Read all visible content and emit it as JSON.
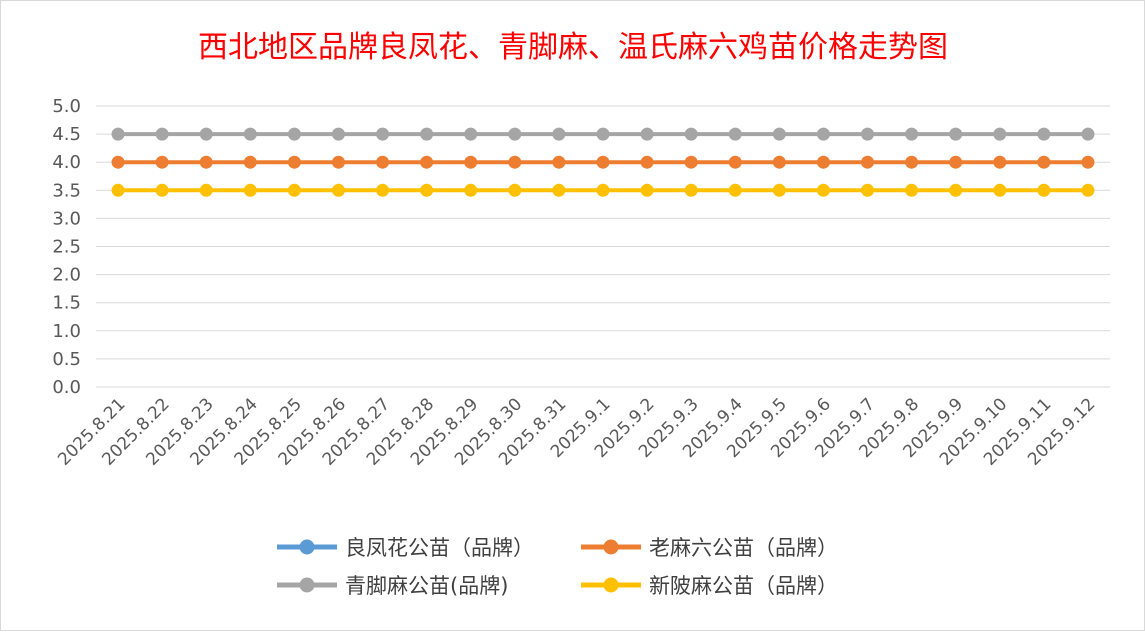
{
  "chart_data": {
    "type": "line",
    "title": "西北地区品牌良凤花、青脚麻、温氏麻六鸡苗价格走势图",
    "xlabel": "",
    "ylabel": "",
    "ylim": [
      0,
      5
    ],
    "yticks": [
      "0.0",
      "0.5",
      "1.0",
      "1.5",
      "2.0",
      "2.5",
      "3.0",
      "3.5",
      "4.0",
      "4.5",
      "5.0"
    ],
    "grid": true,
    "legend_position": "bottom",
    "categories": [
      "2025.8.21",
      "2025.8.22",
      "2025.8.23",
      "2025.8.24",
      "2025.8.25",
      "2025.8.26",
      "2025.8.27",
      "2025.8.28",
      "2025.8.29",
      "2025.8.30",
      "2025.8.31",
      "2025.9.1",
      "2025.9.2",
      "2025.9.3",
      "2025.9.4",
      "2025.9.5",
      "2025.9.6",
      "2025.9.7",
      "2025.9.8",
      "2025.9.9",
      "2025.9.10",
      "2025.9.11",
      "2025.9.12"
    ],
    "series": [
      {
        "name": "良凤花公苗（品牌）",
        "color": "#5b9bd5",
        "values": [
          null,
          null,
          null,
          null,
          null,
          null,
          null,
          null,
          null,
          null,
          null,
          null,
          null,
          null,
          null,
          null,
          null,
          null,
          null,
          null,
          null,
          null,
          null
        ]
      },
      {
        "name": "老麻六公苗（品牌）",
        "color": "#ed7d31",
        "values": [
          4.0,
          4.0,
          4.0,
          4.0,
          4.0,
          4.0,
          4.0,
          4.0,
          4.0,
          4.0,
          4.0,
          4.0,
          4.0,
          4.0,
          4.0,
          4.0,
          4.0,
          4.0,
          4.0,
          4.0,
          4.0,
          4.0,
          4.0
        ]
      },
      {
        "name": "青脚麻公苗(品牌)",
        "color": "#a5a5a5",
        "values": [
          4.5,
          4.5,
          4.5,
          4.5,
          4.5,
          4.5,
          4.5,
          4.5,
          4.5,
          4.5,
          4.5,
          4.5,
          4.5,
          4.5,
          4.5,
          4.5,
          4.5,
          4.5,
          4.5,
          4.5,
          4.5,
          4.5,
          4.5
        ]
      },
      {
        "name": "新陂麻公苗（品牌）",
        "color": "#ffc000",
        "values": [
          3.5,
          3.5,
          3.5,
          3.5,
          3.5,
          3.5,
          3.5,
          3.5,
          3.5,
          3.5,
          3.5,
          3.5,
          3.5,
          3.5,
          3.5,
          3.5,
          3.5,
          3.5,
          3.5,
          3.5,
          3.5,
          3.5,
          3.5
        ]
      }
    ]
  }
}
